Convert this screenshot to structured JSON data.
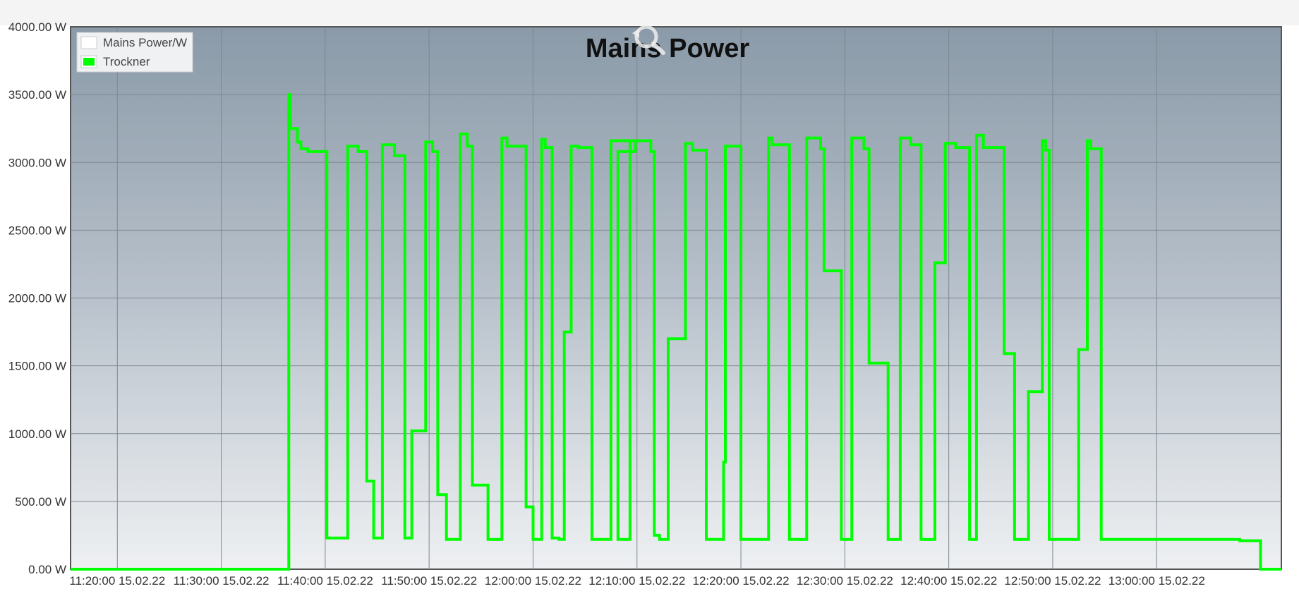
{
  "chart_data": {
    "type": "line",
    "title": "Mains Power",
    "xlabel": "",
    "ylabel": "",
    "ylim": [
      0,
      4000
    ],
    "y_ticks": [
      "0.00 W",
      "500.00 W",
      "1000.00 W",
      "1500.00 W",
      "2000.00 W",
      "2500.00 W",
      "3000.00 W",
      "3500.00 W",
      "4000.00 W"
    ],
    "xlim": [
      "11:15:30 15.02.22",
      "13:12:00 15.02.22"
    ],
    "x_ticks": [
      "11:20:00 15.02.22",
      "11:30:00 15.02.22",
      "11:40:00 15.02.22",
      "11:50:00 15.02.22",
      "12:00:00 15.02.22",
      "12:10:00 15.02.22",
      "12:20:00 15.02.22",
      "12:30:00 15.02.22",
      "12:40:00 15.02.22",
      "12:50:00 15.02.22",
      "13:00:00 15.02.22"
    ],
    "grid": true,
    "legend_position": "top-left",
    "series": [
      {
        "name": "Mains Power/W",
        "color": "#ffffff",
        "x": [],
        "y": []
      },
      {
        "name": "Trockner",
        "color": "#00ff00",
        "step": true,
        "x": [
          "11:15:30 15.02.22",
          "11:36:30 15.02.22",
          "11:36:40 15.02.22",
          "11:37:20 15.02.22",
          "11:37:40 15.02.22",
          "11:38:20 15.02.22",
          "11:38:40 15.02.22",
          "11:39:20 15.02.22",
          "11:40:10 15.02.22",
          "11:42:00 15.02.22",
          "11:42:10 15.02.22",
          "11:43:10 15.02.22",
          "11:44:00 15.02.22",
          "11:44:40 15.02.22",
          "11:45:20 15.02.22",
          "11:45:30 15.02.22",
          "11:46:40 15.02.22",
          "11:47:40 15.02.22",
          "11:48:20 15.02.22",
          "11:49:40 15.02.22",
          "11:50:20 15.02.22",
          "11:50:50 15.02.22",
          "11:51:40 15.02.22",
          "11:52:40 15.02.22",
          "11:53:00 15.02.22",
          "11:53:40 15.02.22",
          "11:54:10 15.02.22",
          "11:55:40 15.02.22",
          "11:56:40 15.02.22",
          "11:57:00 15.02.22",
          "11:57:30 15.02.22",
          "11:59:20 15.02.22",
          "12:00:00 15.02.22",
          "12:00:50 15.02.22",
          "12:01:10 15.02.22",
          "12:01:50 15.02.22",
          "12:02:30 15.02.22",
          "12:03:00 15.02.22",
          "12:03:40 15.02.22",
          "12:04:20 15.02.22",
          "12:05:40 15.02.22",
          "12:06:20 15.02.22",
          "12:07:30 15.02.22",
          "12:09:50 15.02.22",
          "12:08:10 15.02.22",
          "12:08:40 15.02.22",
          "12:09:20 15.02.22",
          "12:11:20 15.02.22",
          "12:11:40 15.02.22",
          "12:12:10 15.02.22",
          "12:13:00 15.02.22",
          "12:14:40 15.02.22",
          "12:15:20 15.02.22",
          "12:16:40 15.02.22",
          "12:17:20 15.02.22",
          "12:18:20 15.02.22",
          "12:18:30 15.02.22",
          "12:20:00 15.02.22",
          "12:22:10 15.02.22",
          "12:22:40 15.02.22",
          "12:23:00 15.02.22",
          "12:24:40 15.02.22",
          "12:26:00 15.02.22",
          "12:26:20 15.02.22",
          "12:27:40 15.02.22",
          "12:28:00 15.02.22",
          "12:29:40 15.02.22",
          "12:30:40 15.02.22",
          "12:31:50 15.02.22",
          "12:32:20 15.02.22",
          "12:34:10 15.02.22",
          "12:35:20 15.02.22",
          "12:36:20 15.02.22",
          "12:37:20 15.02.22",
          "12:38:40 15.02.22",
          "12:39:40 15.02.22",
          "12:40:40 15.02.22",
          "12:42:00 15.02.22",
          "12:42:40 15.02.22",
          "12:43:20 15.02.22",
          "12:45:20 15.02.22",
          "12:46:20 15.02.22",
          "12:47:40 15.02.22",
          "12:49:00 15.02.22",
          "12:49:20 15.02.22",
          "12:49:40 15.02.22",
          "12:51:20 15.02.22",
          "12:52:30 15.02.22",
          "12:53:20 15.02.22",
          "12:53:40 15.02.22",
          "12:54:40 15.02.22",
          "13:08:00 15.02.22",
          "13:10:00 15.02.22"
        ],
        "y": [
          0,
          3500,
          3250,
          3150,
          3100,
          3080,
          3080,
          3080,
          230,
          230,
          3120,
          3080,
          650,
          230,
          230,
          3130,
          3050,
          230,
          1020,
          3150,
          3080,
          550,
          220,
          220,
          3210,
          3120,
          620,
          220,
          220,
          3180,
          3120,
          460,
          220,
          3170,
          3110,
          230,
          220,
          1750,
          3120,
          3110,
          220,
          220,
          3160,
          3080,
          220,
          220,
          3160,
          3080,
          250,
          220,
          1700,
          3140,
          3090,
          220,
          220,
          790,
          3120,
          220,
          220,
          3180,
          3130,
          220,
          220,
          3180,
          3100,
          2200,
          220,
          3180,
          3100,
          1520,
          220,
          3180,
          3130,
          220,
          2260,
          3140,
          3110,
          220,
          3200,
          3110,
          1590,
          220,
          1310,
          3160,
          3090,
          220,
          220,
          1620,
          3160,
          3100,
          220,
          210,
          0
        ]
      }
    ]
  }
}
